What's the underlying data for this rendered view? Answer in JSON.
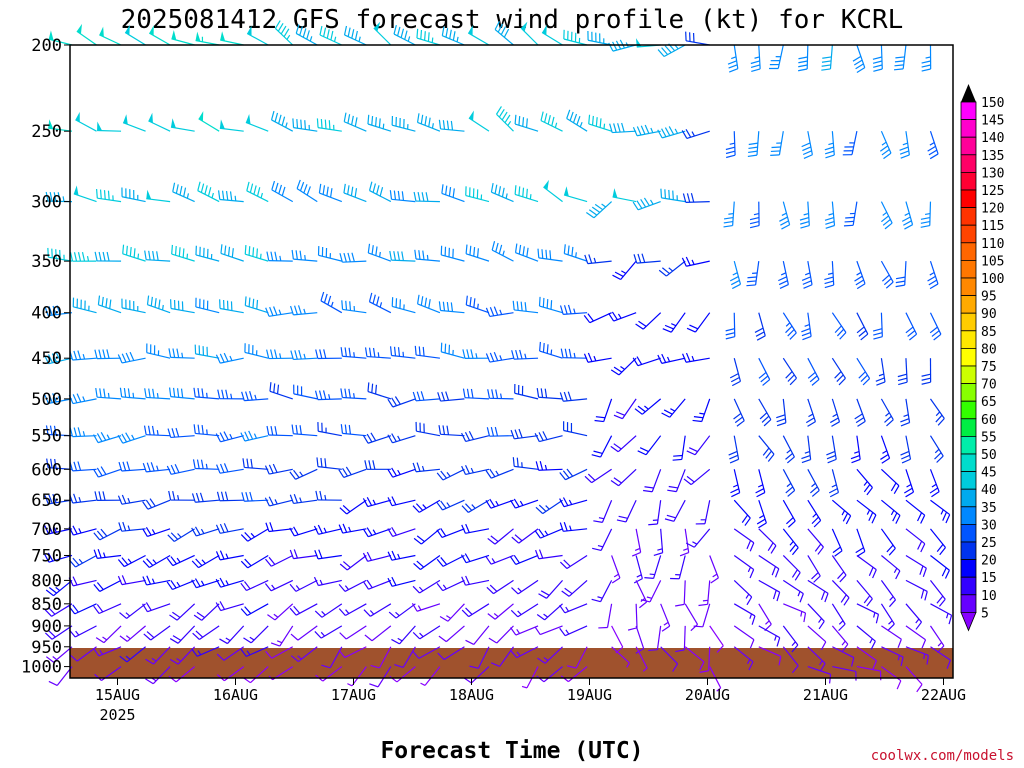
{
  "chart_data": {
    "type": "wind_barb_time_height",
    "title": "2025081412 GFS forecast wind profile (kt) for KCRL",
    "xlabel": "Forecast Time (UTC)",
    "credit": "coolwx.com/models",
    "pressure_levels_hpa": [
      200,
      250,
      300,
      350,
      400,
      450,
      500,
      550,
      600,
      650,
      700,
      750,
      800,
      850,
      900,
      950,
      1000
    ],
    "x_ticks": [
      {
        "label": "15AUG",
        "sub": "2025"
      },
      {
        "label": "16AUG",
        "sub": ""
      },
      {
        "label": "17AUG",
        "sub": ""
      },
      {
        "label": "18AUG",
        "sub": ""
      },
      {
        "label": "19AUG",
        "sub": ""
      },
      {
        "label": "20AUG",
        "sub": ""
      },
      {
        "label": "21AUG",
        "sub": ""
      },
      {
        "label": "22AUG",
        "sub": ""
      }
    ],
    "colorbar": {
      "unit": "kt",
      "levels": [
        150,
        145,
        140,
        135,
        130,
        125,
        120,
        115,
        110,
        105,
        100,
        95,
        90,
        85,
        80,
        75,
        70,
        65,
        60,
        55,
        50,
        45,
        40,
        35,
        30,
        25,
        20,
        15,
        10,
        5
      ],
      "colors": [
        "#ff00ff",
        "#ff00cc",
        "#ff0099",
        "#ff0066",
        "#ff0033",
        "#ff0000",
        "#ff3300",
        "#ff4400",
        "#ff6600",
        "#ff7700",
        "#ff8800",
        "#ffaa00",
        "#ffcc00",
        "#ffe800",
        "#ffff00",
        "#ccff00",
        "#88ff00",
        "#33ff00",
        "#00ee44",
        "#00eeaa",
        "#00ddcc",
        "#00ccdd",
        "#00aaee",
        "#0088ff",
        "#0055ff",
        "#0033ee",
        "#0000ff",
        "#3300ff",
        "#6600ff",
        "#8800ff"
      ]
    },
    "ground_color": "#a0522d"
  }
}
